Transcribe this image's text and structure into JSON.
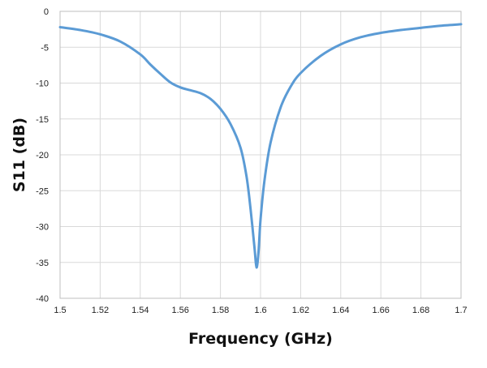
{
  "chart_data": {
    "type": "line",
    "title": "",
    "xlabel": "Frequency (GHz)",
    "ylabel": "S11 (dB)",
    "xlim": [
      1.5,
      1.7
    ],
    "ylim": [
      -40,
      0
    ],
    "x_ticks": [
      "1.5",
      "1.52",
      "1.54",
      "1.56",
      "1.58",
      "1.6",
      "1.62",
      "1.64",
      "1.66",
      "1.68",
      "1.7"
    ],
    "y_ticks": [
      "0",
      "-5",
      "-10",
      "-15",
      "-20",
      "-25",
      "-30",
      "-35",
      "-40"
    ],
    "grid": true,
    "legend": "none",
    "line_color": "#5b9bd5",
    "series": [
      {
        "x": [
          1.5,
          1.51,
          1.52,
          1.53,
          1.54,
          1.545,
          1.55,
          1.555,
          1.56,
          1.565,
          1.57,
          1.575,
          1.58,
          1.585,
          1.59,
          1.593,
          1.595,
          1.597,
          1.598,
          1.599,
          1.6,
          1.602,
          1.605,
          1.61,
          1.615,
          1.62,
          1.63,
          1.64,
          1.65,
          1.66,
          1.67,
          1.68,
          1.69,
          1.7
        ],
        "y": [
          -2.2,
          -2.6,
          -3.2,
          -4.2,
          -6.0,
          -7.4,
          -8.7,
          -9.9,
          -10.6,
          -11.0,
          -11.4,
          -12.2,
          -13.6,
          -15.7,
          -19.0,
          -23.0,
          -27.5,
          -33.0,
          -35.7,
          -33.5,
          -29.0,
          -23.5,
          -18.3,
          -13.4,
          -10.5,
          -8.6,
          -6.2,
          -4.6,
          -3.6,
          -3.0,
          -2.6,
          -2.3,
          -2.0,
          -1.8
        ]
      }
    ]
  }
}
